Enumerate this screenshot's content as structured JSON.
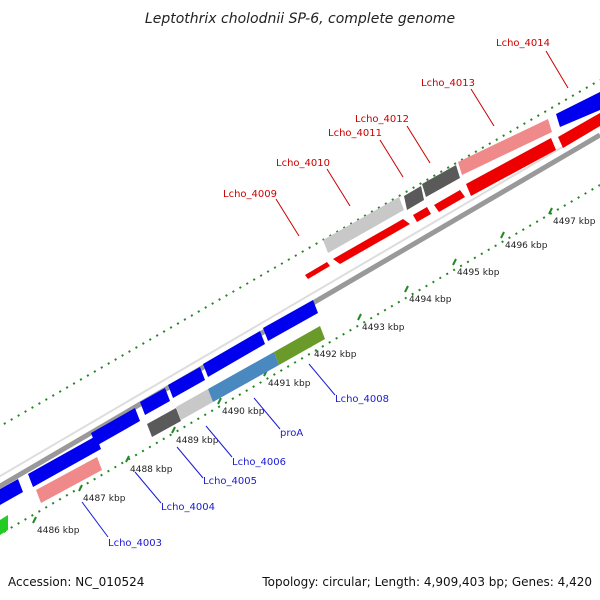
{
  "title": "Leptothrix cholodnii SP-6, complete genome",
  "footer": {
    "accession": "Accession: NC_010524",
    "summary": "Topology: circular; Length: 4,909,403 bp; Genes: 4,420"
  },
  "ticks": [
    {
      "label": "4486 kbp"
    },
    {
      "label": "4487 kbp"
    },
    {
      "label": "4488 kbp"
    },
    {
      "label": "4489 kbp"
    },
    {
      "label": "4490 kbp"
    },
    {
      "label": "4491 kbp"
    },
    {
      "label": "4492 kbp"
    },
    {
      "label": "4493 kbp"
    },
    {
      "label": "4494 kbp"
    },
    {
      "label": "4495 kbp"
    },
    {
      "label": "4496 kbp"
    },
    {
      "label": "4497 kbp"
    }
  ],
  "top_labels": [
    "Lcho_4009",
    "Lcho_4010",
    "Lcho_4011",
    "Lcho_4012",
    "Lcho_4013",
    "Lcho_4014"
  ],
  "bottom_labels": [
    "Lcho_4003",
    "Lcho_4004",
    "Lcho_4005",
    "Lcho_4006",
    "proA",
    "Lcho_4008"
  ],
  "colors": {
    "forward": "#0000ee",
    "reverse": "#ee0000",
    "pink": "#f08a8a",
    "dark_grey": "#5a5a5a",
    "light_grey": "#c8c8c8",
    "steel": "#4a88c0",
    "olive": "#6a9a2a",
    "green": "#22cc22",
    "tick": "#228822",
    "label_top": "#cc0000",
    "label_bottom": "#1a1ad6"
  }
}
